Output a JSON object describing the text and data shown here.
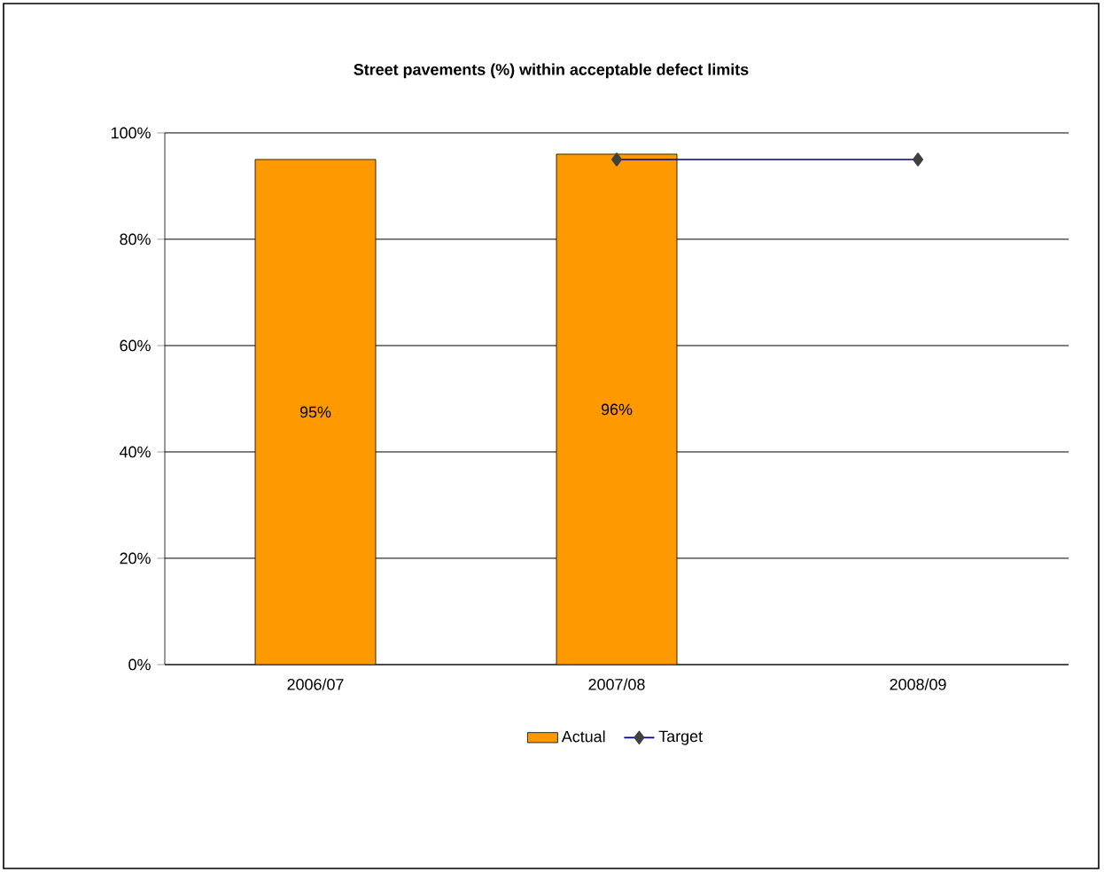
{
  "chart_data": {
    "type": "bar",
    "title": "Street pavements (%) within acceptable defect limits",
    "categories": [
      "2006/07",
      "2007/08",
      "2008/09"
    ],
    "series": [
      {
        "name": "Actual",
        "color": "#ff9900",
        "values": [
          95,
          96,
          null
        ],
        "value_labels": [
          "95%",
          "96%",
          null
        ]
      },
      {
        "name": "Target",
        "type": "line",
        "color": "#000080",
        "marker": "diamond",
        "values": [
          null,
          95,
          95
        ]
      }
    ],
    "ylim": [
      0,
      100
    ],
    "yticks": [
      {
        "value": 0,
        "label": "0%"
      },
      {
        "value": 20,
        "label": "20%"
      },
      {
        "value": 40,
        "label": "40%"
      },
      {
        "value": 60,
        "label": "60%"
      },
      {
        "value": 80,
        "label": "80%"
      },
      {
        "value": 100,
        "label": "100%"
      }
    ],
    "grid": "y",
    "legend": "bottom"
  }
}
